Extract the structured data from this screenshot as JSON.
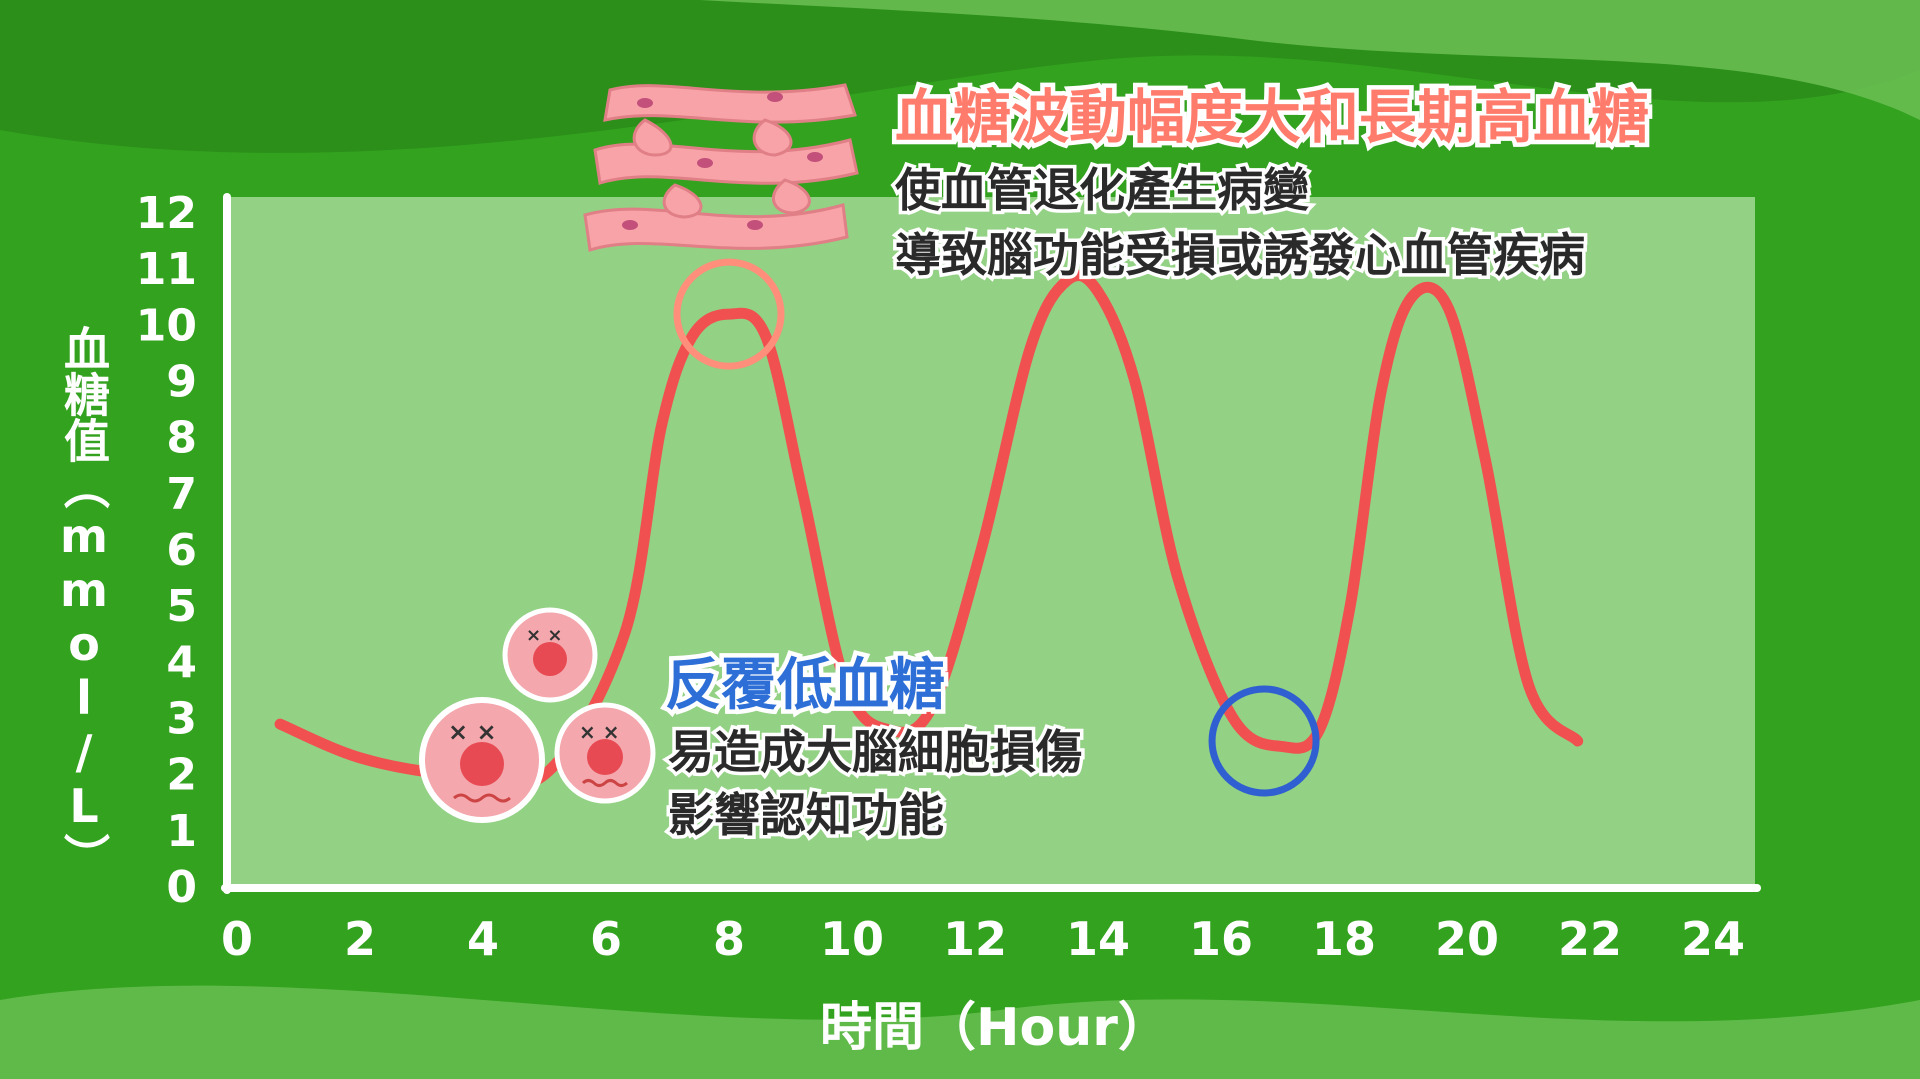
{
  "chart_data": {
    "type": "line",
    "xlabel": "時間（Hour）",
    "ylabel": "血糖值（mmol/L）",
    "xlim": [
      0,
      24
    ],
    "ylim": [
      0,
      12
    ],
    "x_ticks": [
      0,
      2,
      4,
      6,
      8,
      10,
      12,
      14,
      16,
      18,
      20,
      22,
      24
    ],
    "y_ticks": [
      0,
      1,
      2,
      3,
      4,
      5,
      6,
      7,
      8,
      9,
      10,
      11,
      12
    ],
    "series": [
      {
        "x": [
          0.7,
          2,
          3.5,
          5,
          6.3,
          6.9,
          7.4,
          8,
          8.6,
          9.2,
          9.9,
          10.6,
          11.3,
          12.1,
          12.9,
          13.5,
          14.0,
          14.6,
          15.3,
          16.2,
          17.0,
          17.6,
          18.1,
          18.6,
          19.1,
          19.7,
          20.3,
          21.0,
          21.8
        ],
        "y": [
          2.9,
          2.3,
          2.0,
          2.0,
          4.5,
          8.2,
          9.8,
          10.2,
          9.8,
          7.0,
          3.6,
          2.8,
          3.2,
          6.0,
          9.6,
          10.8,
          10.6,
          9.0,
          5.5,
          3.0,
          2.5,
          2.8,
          5.0,
          8.8,
          10.5,
          10.3,
          7.6,
          3.6,
          2.6
        ]
      }
    ],
    "annotations": [
      {
        "x": 8,
        "y": 10.2,
        "color": "#ff8e7a"
      },
      {
        "x": 16.7,
        "y": 2.6,
        "color": "#2f5fd0"
      }
    ],
    "grid": false
  },
  "callouts": {
    "high": {
      "title": "血糖波動幅度大和長期高血糖",
      "line1": "使血管退化產生病變",
      "line2": "導致腦功能受損或誘發心血管疾病"
    },
    "low": {
      "title": "反覆低血糖",
      "line1": "易造成大腦細胞損傷",
      "line2": "影響認知功能"
    }
  },
  "colors": {
    "background": "#33a21f",
    "plot_area": "#93d184",
    "curve": "#f05050",
    "high_title": "#ff7b6b",
    "low_title": "#2d6fd6",
    "blood_vessel": "#f7a3a8",
    "brain_cell": "#f4a7ad"
  },
  "icons": [
    "blood-vessel-icon",
    "dizzy-cell-icon"
  ]
}
